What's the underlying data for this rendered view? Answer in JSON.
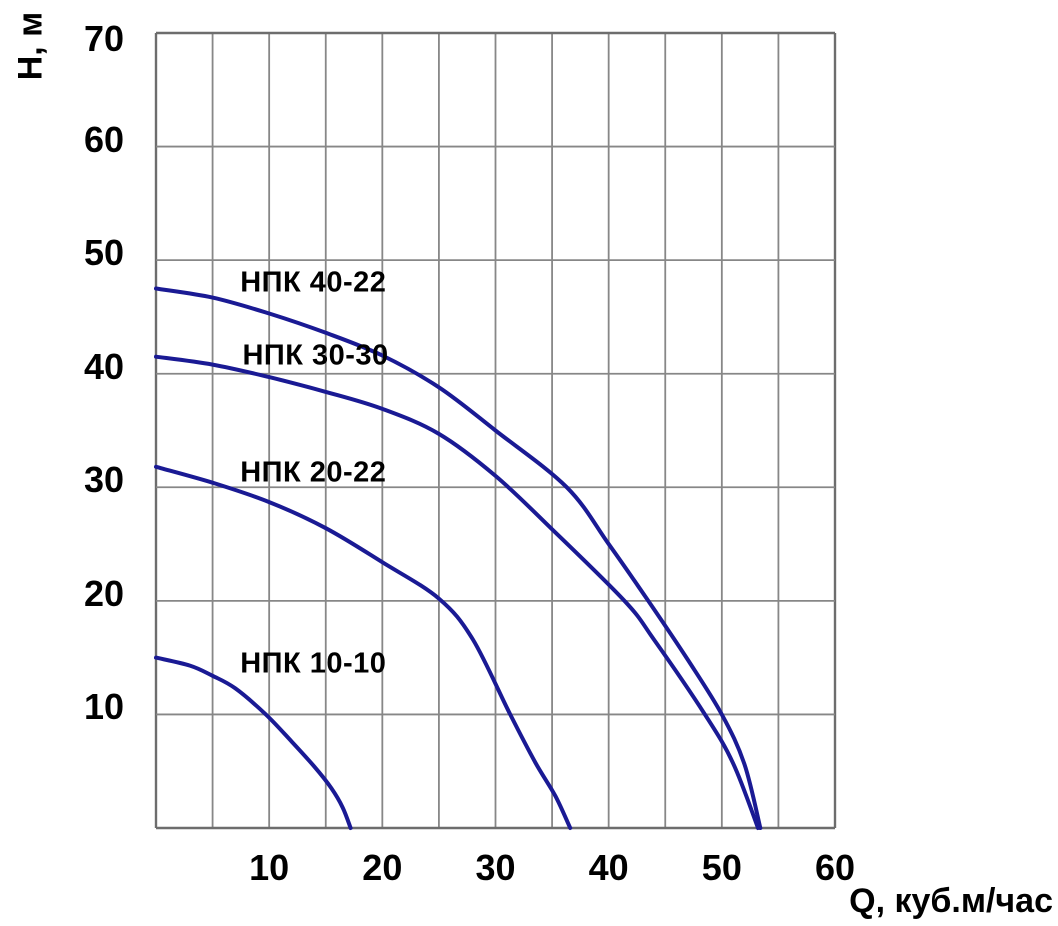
{
  "chart_data": {
    "type": "line",
    "title": "",
    "xlabel": "Q, куб.м/час",
    "ylabel": "Н, м",
    "x_axis": {
      "min": 0,
      "max": 60,
      "grid_step": 5,
      "tick_labels": [
        10,
        20,
        30,
        40,
        50,
        60
      ]
    },
    "y_axis": {
      "min": 0,
      "max": 70,
      "grid_step": 10,
      "tick_labels": [
        70,
        60,
        50,
        40,
        30,
        20,
        10
      ]
    },
    "grid": true,
    "legend_position": "inline-labels",
    "colors": {
      "curve": "#1a1a94",
      "grid": "#878787",
      "border": "#6d6d6d",
      "text": "#000000",
      "background": "#ffffff"
    },
    "series": [
      {
        "name": "НПК 40-22",
        "label_pos": [
          13.9,
          48.0
        ],
        "points": [
          [
            0,
            47.5
          ],
          [
            5,
            46.7
          ],
          [
            10,
            45.3
          ],
          [
            15,
            43.6
          ],
          [
            20,
            41.6
          ],
          [
            25,
            38.8
          ],
          [
            30,
            35.0
          ],
          [
            36.3,
            30.0
          ],
          [
            40,
            25.0
          ],
          [
            43.5,
            20.0
          ],
          [
            47,
            14.8
          ],
          [
            50,
            10.0
          ],
          [
            52,
            5.6
          ],
          [
            53.4,
            0
          ]
        ]
      },
      {
        "name": "НПК 30-30",
        "label_pos": [
          14.1,
          41.6
        ],
        "points": [
          [
            0,
            41.5
          ],
          [
            5,
            40.8
          ],
          [
            10,
            39.7
          ],
          [
            15,
            38.4
          ],
          [
            20,
            36.9
          ],
          [
            25,
            34.7
          ],
          [
            30,
            31.0
          ],
          [
            35,
            26.3
          ],
          [
            41.4,
            20.0
          ],
          [
            44,
            16.6
          ],
          [
            48.5,
            10.0
          ],
          [
            51,
            5.7
          ],
          [
            53.2,
            0
          ]
        ]
      },
      {
        "name": "НПК 20-22",
        "label_pos": [
          13.9,
          31.3
        ],
        "points": [
          [
            0,
            31.8
          ],
          [
            5,
            30.4
          ],
          [
            10,
            28.7
          ],
          [
            15,
            26.4
          ],
          [
            20,
            23.4
          ],
          [
            25,
            20.2
          ],
          [
            28,
            16.6
          ],
          [
            31.3,
            10.0
          ],
          [
            33.5,
            5.8
          ],
          [
            35.3,
            2.8
          ],
          [
            36.6,
            0
          ]
        ]
      },
      {
        "name": "НПК 10-10",
        "label_pos": [
          13.9,
          14.4
        ],
        "points": [
          [
            0,
            15.0
          ],
          [
            3,
            14.3
          ],
          [
            5,
            13.4
          ],
          [
            7,
            12.3
          ],
          [
            9.7,
            10.0
          ],
          [
            12,
            7.6
          ],
          [
            14,
            5.4
          ],
          [
            15.5,
            3.5
          ],
          [
            16.5,
            1.8
          ],
          [
            17.2,
            0
          ]
        ]
      }
    ]
  }
}
